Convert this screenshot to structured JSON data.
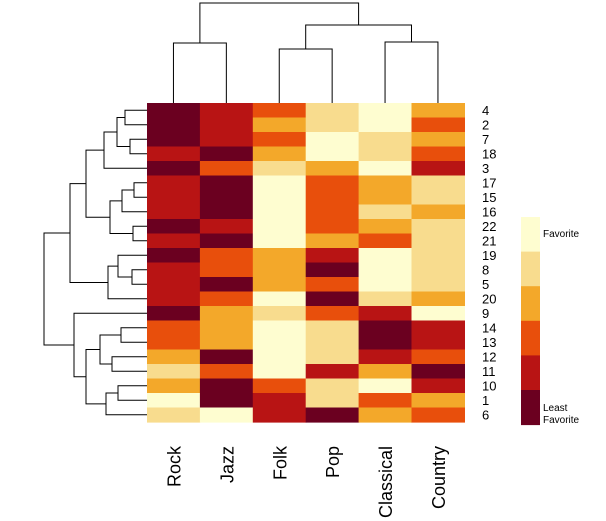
{
  "chart_data": {
    "type": "heatmap",
    "title": "",
    "xlabel": "",
    "ylabel": "",
    "columns": [
      "Rock",
      "Jazz",
      "Folk",
      "Pop",
      "Classical",
      "Country"
    ],
    "rows": [
      "4",
      "2",
      "7",
      "18",
      "3",
      "17",
      "15",
      "16",
      "22",
      "21",
      "19",
      "8",
      "5",
      "20",
      "9",
      "14",
      "13",
      "12",
      "11",
      "10",
      "1",
      "6"
    ],
    "scale_range": [
      1,
      6
    ],
    "values": [
      [
        1,
        2,
        3,
        5,
        6,
        4
      ],
      [
        1,
        2,
        4,
        5,
        6,
        3
      ],
      [
        1,
        2,
        3,
        6,
        5,
        4
      ],
      [
        2,
        1,
        4,
        6,
        5,
        3
      ],
      [
        1,
        3,
        5,
        4,
        6,
        2
      ],
      [
        2,
        1,
        6,
        3,
        4,
        5
      ],
      [
        2,
        1,
        6,
        3,
        4,
        5
      ],
      [
        2,
        1,
        6,
        3,
        5,
        4
      ],
      [
        1,
        2,
        6,
        3,
        4,
        5
      ],
      [
        2,
        1,
        6,
        4,
        3,
        5
      ],
      [
        1,
        3,
        4,
        2,
        6,
        5
      ],
      [
        2,
        3,
        4,
        1,
        6,
        5
      ],
      [
        2,
        1,
        4,
        3,
        6,
        5
      ],
      [
        2,
        3,
        6,
        1,
        5,
        4
      ],
      [
        1,
        4,
        5,
        3,
        2,
        6
      ],
      [
        3,
        4,
        6,
        5,
        1,
        2
      ],
      [
        3,
        4,
        6,
        5,
        1,
        2
      ],
      [
        4,
        1,
        6,
        5,
        2,
        3
      ],
      [
        5,
        3,
        6,
        2,
        4,
        1
      ],
      [
        4,
        1,
        3,
        5,
        6,
        2
      ],
      [
        6,
        1,
        2,
        5,
        3,
        4
      ],
      [
        5,
        6,
        2,
        1,
        4,
        3
      ]
    ],
    "legend": {
      "placement": "right",
      "labels": {
        "high": "Favorite",
        "low_line1": "Least",
        "low_line2": "Favorite"
      },
      "colors_low_to_high": [
        "#6b0020",
        "#b81414",
        "#e84f0c",
        "#f3a82a",
        "#f8dc8e",
        "#fefdd0"
      ]
    },
    "column_dendrogram": [
      [
        0,
        1
      ],
      [
        2,
        3
      ],
      [
        4,
        5
      ],
      [
        [
          2,
          3
        ],
        [
          4,
          5
        ]
      ],
      [
        [
          0,
          1
        ],
        [
          [
            2,
            3
          ],
          [
            4,
            5
          ]
        ]
      ]
    ]
  }
}
